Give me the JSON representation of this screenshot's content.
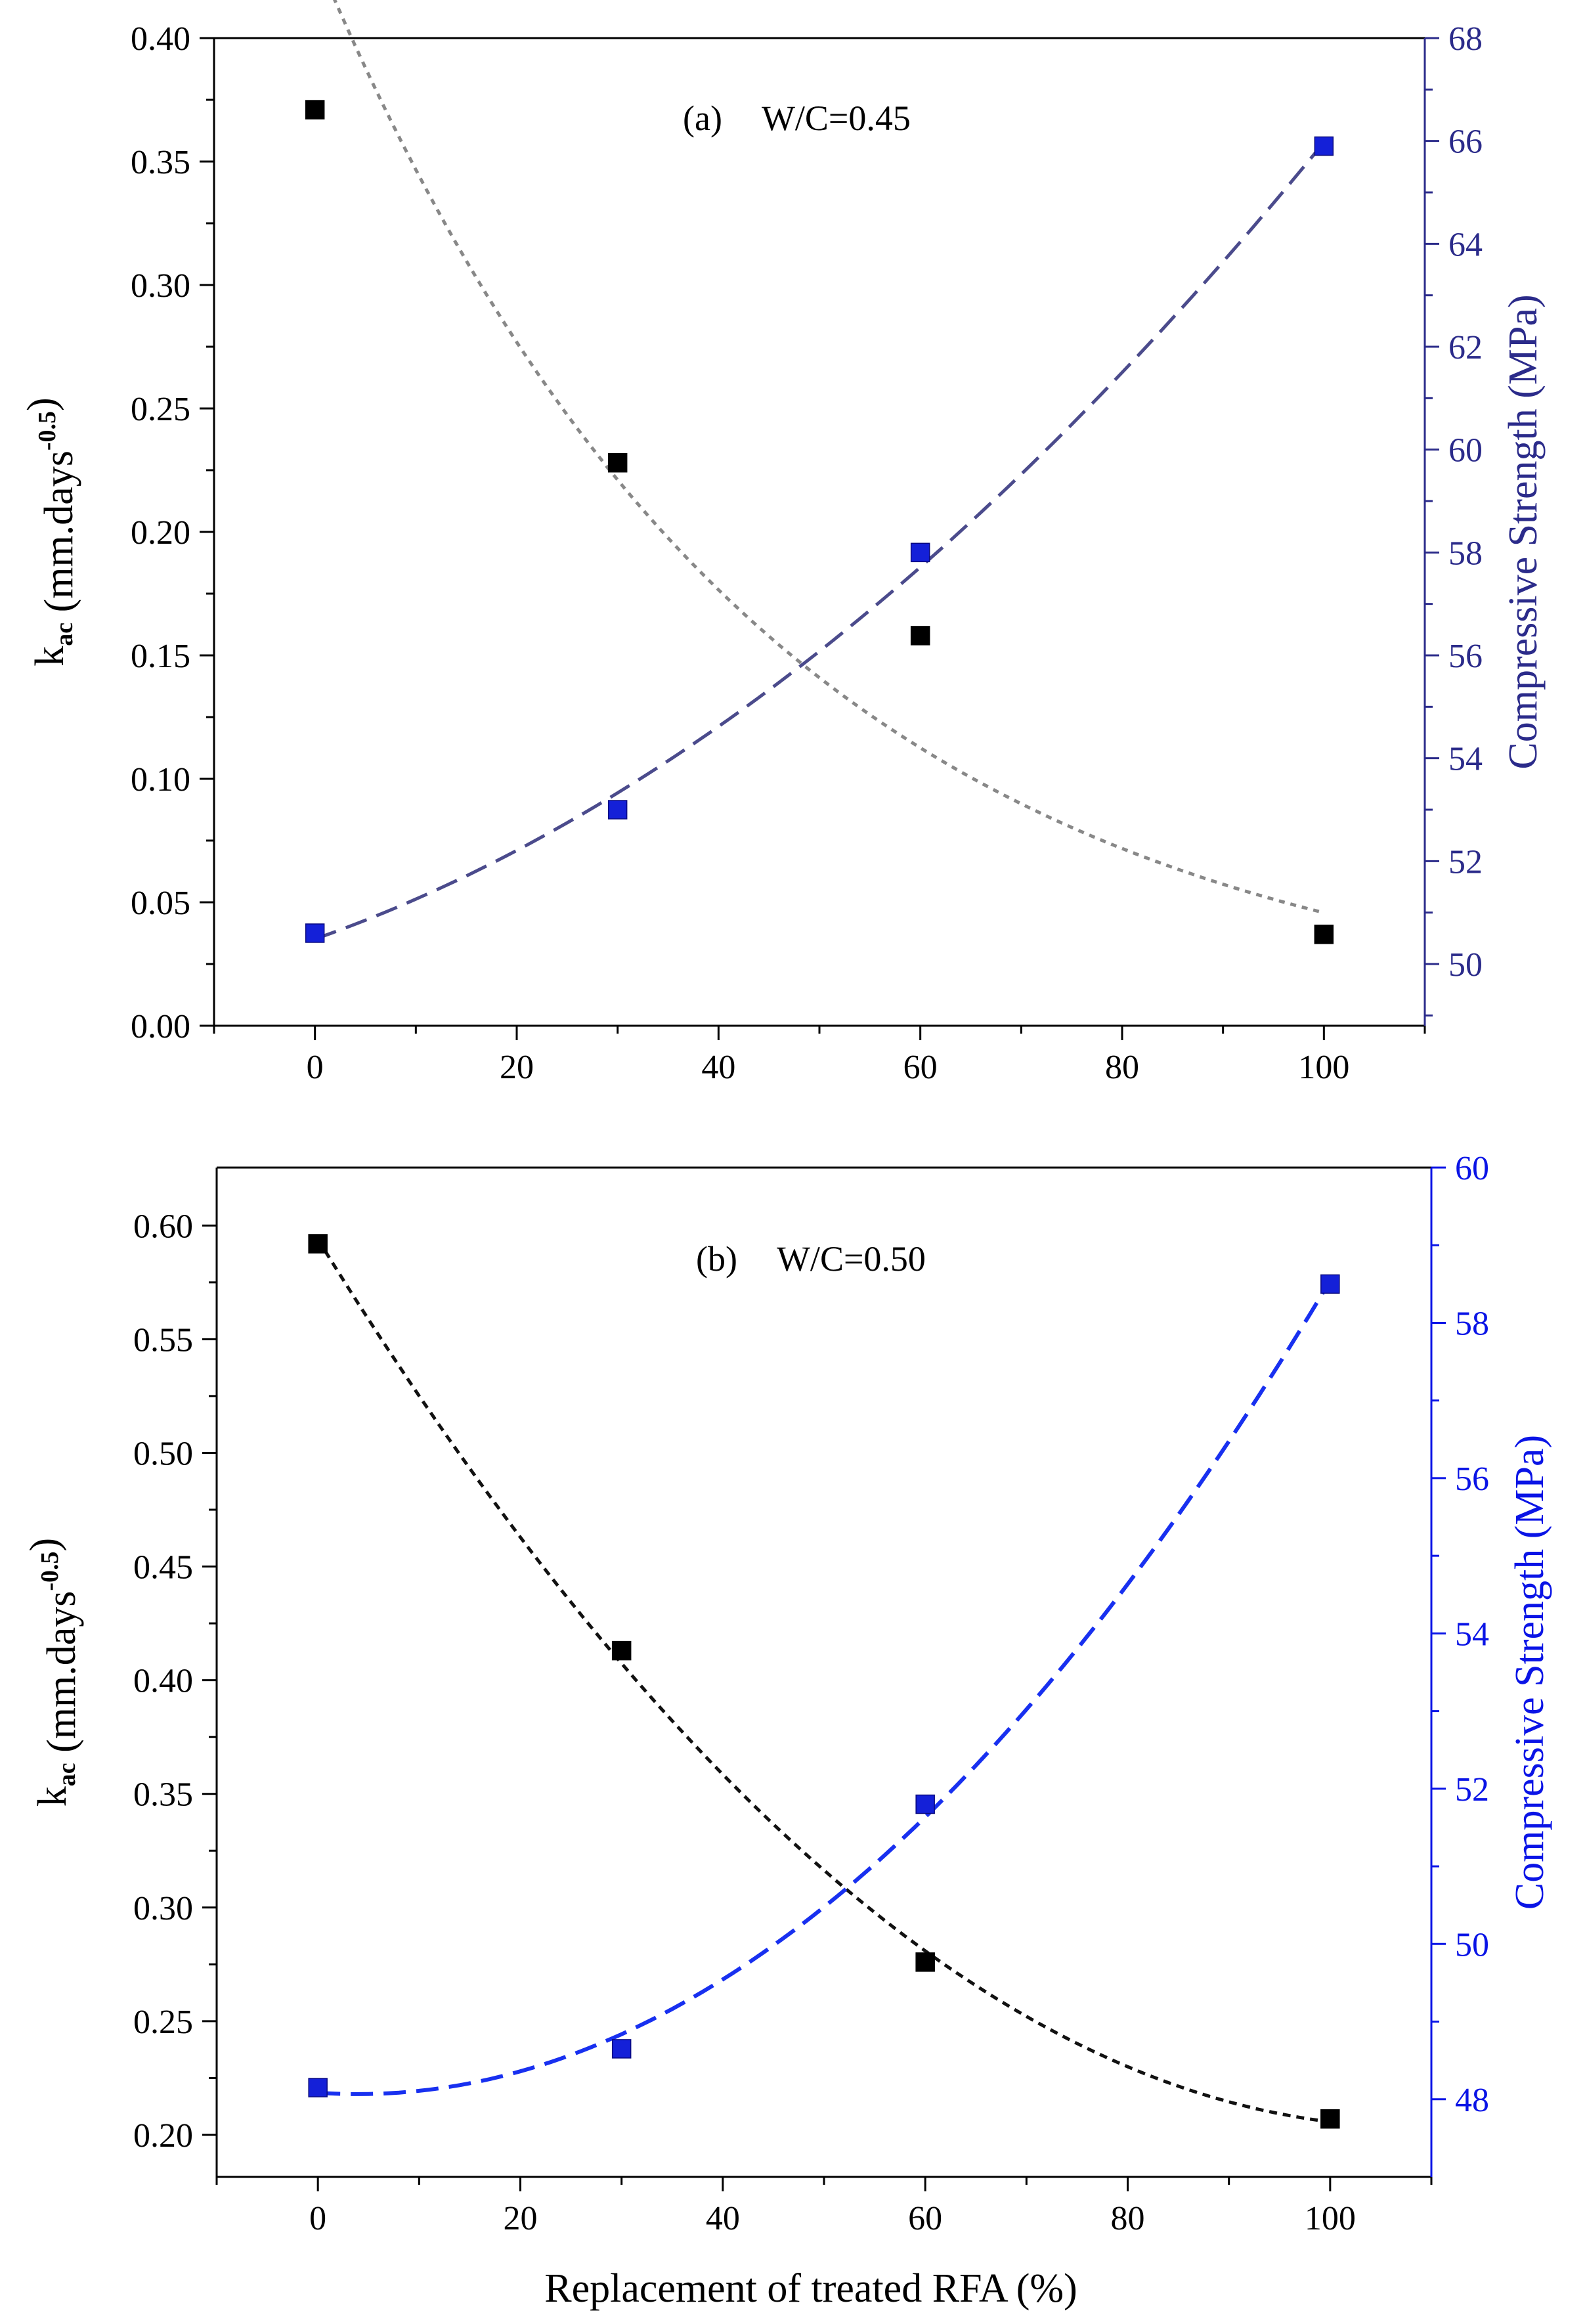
{
  "colors": {
    "primary_axis": "#000000",
    "panel_a_secondary": "#2b2b8a",
    "panel_b_secondary": "#0a14e6",
    "marker_k": "#000000",
    "marker_cs": "#1420d8",
    "fit_k_a": "#888888",
    "fit_cs_a": "#4b4b8c",
    "fit_k_b": "#111111",
    "fit_cs_b": "#1830f0"
  },
  "xaxis_title": "Replacement of treated RFA (%)",
  "chart_data": [
    {
      "type": "scatter",
      "panel": "a",
      "annotation_label": "(a)",
      "annotation_condition": "W/C=0.45",
      "xlim": [
        -10,
        110
      ],
      "x_ticks": [
        0,
        20,
        40,
        60,
        80,
        100
      ],
      "x_tick_labels": [
        "0",
        "20",
        "40",
        "60",
        "80",
        "100"
      ],
      "y_left": {
        "label_main": "k",
        "label_sub": "ac",
        "label_unit_pre": " (mm.days",
        "label_sup": "-0.5",
        "label_unit_post": ")",
        "lim": [
          0,
          0.4
        ],
        "ticks": [
          0,
          0.05,
          0.1,
          0.15,
          0.2,
          0.25,
          0.3,
          0.35,
          0.4
        ],
        "tick_labels": [
          "0.00",
          "0.05",
          "0.10",
          "0.15",
          "0.20",
          "0.25",
          "0.30",
          "0.35",
          "0.40"
        ]
      },
      "y_right": {
        "label": "Compressive Strength (MPa)",
        "lim": [
          48.8,
          68
        ],
        "ticks": [
          50,
          52,
          54,
          56,
          58,
          60,
          62,
          64,
          66,
          68
        ],
        "tick_labels": [
          "50",
          "52",
          "54",
          "56",
          "58",
          "60",
          "62",
          "64",
          "66",
          "68"
        ]
      },
      "series": [
        {
          "name": "k_ac",
          "axis": "left",
          "marker": "square",
          "fit": "exponential-decay",
          "x": [
            0,
            30,
            60,
            100
          ],
          "y": [
            0.371,
            0.228,
            0.158,
            0.037
          ]
        },
        {
          "name": "Compressive Strength",
          "axis": "right",
          "marker": "square",
          "fit": "quadratic",
          "x": [
            0,
            30,
            60,
            100
          ],
          "y": [
            50.6,
            53.0,
            58.0,
            65.9
          ]
        }
      ]
    },
    {
      "type": "scatter",
      "panel": "b",
      "annotation_label": "(b)",
      "annotation_condition": "W/C=0.50",
      "xlim": [
        -10,
        110
      ],
      "x_ticks": [
        0,
        20,
        40,
        60,
        80,
        100
      ],
      "x_tick_labels": [
        "0",
        "20",
        "40",
        "60",
        "80",
        "100"
      ],
      "y_left": {
        "label_main": "k",
        "label_sub": "ac",
        "label_unit_pre": " (mm.days",
        "label_sup": "-0.5",
        "label_unit_post": ")",
        "lim": [
          0.1815,
          0.6255
        ],
        "ticks": [
          0.2,
          0.25,
          0.3,
          0.35,
          0.4,
          0.45,
          0.5,
          0.55,
          0.6
        ],
        "tick_labels": [
          "0.20",
          "0.25",
          "0.30",
          "0.35",
          "0.40",
          "0.45",
          "0.50",
          "0.55",
          "0.60"
        ]
      },
      "y_right": {
        "label": "Compressive Strength (MPa)",
        "lim": [
          47,
          60
        ],
        "ticks": [
          48,
          50,
          52,
          54,
          56,
          58,
          60
        ],
        "tick_labels": [
          "48",
          "50",
          "52",
          "54",
          "56",
          "58",
          "60"
        ]
      },
      "series": [
        {
          "name": "k_ac",
          "axis": "left",
          "marker": "square",
          "fit": "quadratic",
          "x": [
            0,
            30,
            60,
            100
          ],
          "y": [
            0.592,
            0.413,
            0.276,
            0.207
          ]
        },
        {
          "name": "Compressive Strength",
          "axis": "right",
          "marker": "square",
          "fit": "quadratic",
          "x": [
            0,
            30,
            60,
            100
          ],
          "y": [
            48.15,
            48.65,
            51.8,
            58.5
          ]
        }
      ]
    }
  ]
}
